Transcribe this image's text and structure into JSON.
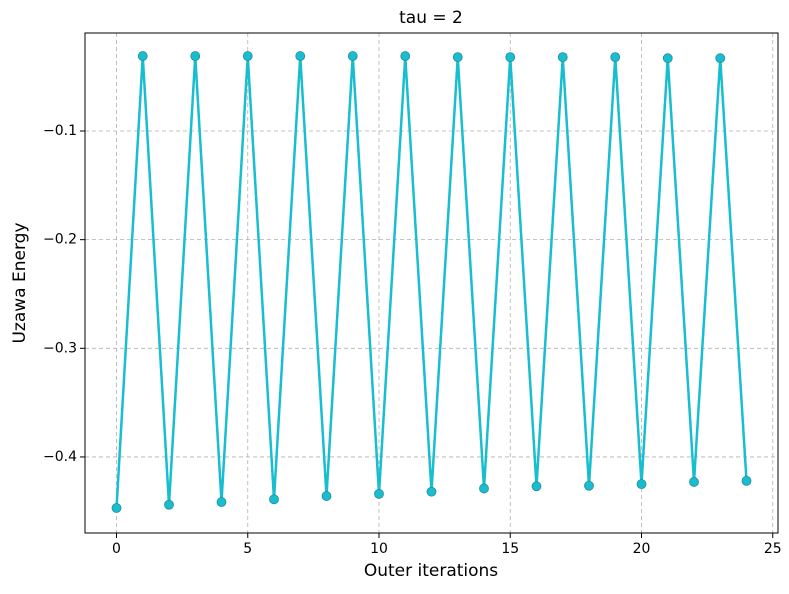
{
  "chart_data": {
    "type": "line",
    "title": "tau = 2",
    "x_label": "Outer iterations",
    "y_label": "Uzawa Energy",
    "x": [
      0,
      1,
      2,
      3,
      4,
      5,
      6,
      7,
      8,
      9,
      10,
      11,
      12,
      13,
      14,
      15,
      16,
      17,
      18,
      19,
      20,
      21,
      22,
      23,
      24
    ],
    "series": [
      {
        "name": "Uzawa Energy",
        "color": "#17becf",
        "values": [
          -0.447,
          -0.031,
          -0.444,
          -0.031,
          -0.4415,
          -0.031,
          -0.439,
          -0.031,
          -0.436,
          -0.031,
          -0.434,
          -0.031,
          -0.432,
          -0.032,
          -0.429,
          -0.032,
          -0.427,
          -0.032,
          -0.4265,
          -0.032,
          -0.425,
          -0.033,
          -0.423,
          -0.033,
          -0.422
        ]
      }
    ],
    "xlim": [
      -1.2,
      25.2
    ],
    "xticks": [
      0,
      5,
      10,
      15,
      20,
      25
    ],
    "ylim": [
      -0.47,
      -0.0098
    ],
    "yticks": [
      {
        "value": -0.4,
        "label": "−0.4"
      },
      {
        "value": -0.3,
        "label": "−0.3"
      },
      {
        "value": -0.2,
        "label": "−0.2"
      },
      {
        "value": -0.1,
        "label": "−0.1"
      }
    ],
    "grid": true
  }
}
